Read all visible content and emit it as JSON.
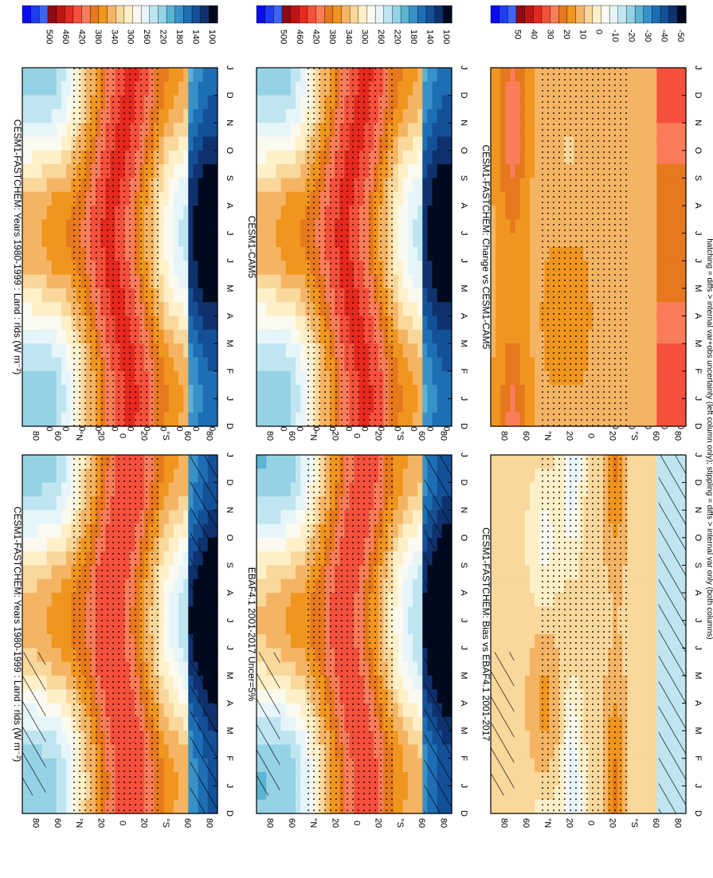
{
  "footer": "hatching = diffs > internal var+obs uncertainty (left column only); stippling = diffs > internal var only (both columns)",
  "months": [
    "D",
    "J",
    "F",
    "M",
    "A",
    "M",
    "J",
    "J",
    "A",
    "S",
    "O",
    "N",
    "D",
    "J"
  ],
  "lat_ticks": [
    "80",
    "60",
    "°N",
    "20",
    "0",
    "20",
    "°S",
    "60",
    "80"
  ],
  "abs_levels": [
    "500",
    "460",
    "420",
    "380",
    "340",
    "300",
    "260",
    "220",
    "180",
    "140",
    "100"
  ],
  "diff_levels": [
    "50",
    "40",
    "30",
    "20",
    "10",
    "0",
    "-10",
    "-20",
    "-30",
    "-40",
    "-50"
  ],
  "abs_colors": [
    "#0a0af5",
    "#1e3cf0",
    "#3c64f5",
    "#8c0a14",
    "#be1414",
    "#e6281e",
    "#f5503c",
    "#fa7d5a",
    "#e6781e",
    "#f0961e",
    "#f5b464",
    "#fad79b",
    "#fff0c8",
    "#fafaf0",
    "#e6f5fa",
    "#bfe6f0",
    "#96d2e6",
    "#5ab4d2",
    "#3791c8",
    "#1e6eb4",
    "#145096",
    "#0f326e",
    "#000a1e"
  ],
  "diff_colors": [
    "#0a0af5",
    "#1e3cf0",
    "#3c64f5",
    "#8c0a14",
    "#be1414",
    "#e6281e",
    "#f5503c",
    "#fa7d5a",
    "#e6781e",
    "#f0961e",
    "#f5b464",
    "#fad79b",
    "#fff0c8",
    "#fafaf0",
    "#e6f5fa",
    "#bfe6f0",
    "#96d2e6",
    "#5ab4d2",
    "#3791c8",
    "#1e6eb4",
    "#145096",
    "#0f326e",
    "#000a1e"
  ],
  "chart_data": [
    {
      "type": "heatmap",
      "title": "CESM1-FASTCHEM: Years 1980-1999 : Land : rlds (W m⁻²)",
      "x": [
        "D",
        "J",
        "F",
        "M",
        "A",
        "M",
        "J",
        "J",
        "A",
        "S",
        "O",
        "N",
        "D",
        "J"
      ],
      "y": [
        "80",
        "60",
        "°N",
        "20",
        "0",
        "20",
        "°S",
        "60",
        "80"
      ],
      "colorbar": [
        "500",
        "460",
        "420",
        "380",
        "340",
        "300",
        "260",
        "220",
        "180",
        "140",
        "100"
      ],
      "hatching": true,
      "stippling": true
    },
    {
      "type": "heatmap",
      "title": "CESM1-FASTCHEM: Years 1980-1999 : Land : rlds (W m⁻²)",
      "x": [
        "D",
        "J",
        "F",
        "M",
        "A",
        "M",
        "J",
        "J",
        "A",
        "S",
        "O",
        "N",
        "D",
        "J"
      ],
      "y": [
        "80",
        "60",
        "°N",
        "20",
        "0",
        "20",
        "°S",
        "60",
        "80"
      ],
      "colorbar": [
        "500",
        "460",
        "420",
        "380",
        "340",
        "300",
        "260",
        "220",
        "180",
        "140",
        "100"
      ],
      "hatching": false,
      "stippling": true
    },
    {
      "type": "heatmap",
      "title": "EBAF4.1 2001-2017 Uncer=5%",
      "x": [
        "D",
        "J",
        "F",
        "M",
        "A",
        "M",
        "J",
        "J",
        "A",
        "S",
        "O",
        "N",
        "D",
        "J"
      ],
      "y": [
        "80",
        "60",
        "°N",
        "20",
        "0",
        "20",
        "°S",
        "60",
        "80"
      ],
      "colorbar": [
        "500",
        "460",
        "420",
        "380",
        "340",
        "300",
        "260",
        "220",
        "180",
        "140",
        "100"
      ],
      "hatching": true,
      "stippling": true
    },
    {
      "type": "heatmap",
      "title": "CESM1-CAM5",
      "x": [
        "D",
        "J",
        "F",
        "M",
        "A",
        "M",
        "J",
        "J",
        "A",
        "S",
        "O",
        "N",
        "D",
        "J"
      ],
      "y": [
        "80",
        "60",
        "°N",
        "20",
        "0",
        "20",
        "°S",
        "60",
        "80"
      ],
      "colorbar": [
        "500",
        "460",
        "420",
        "380",
        "340",
        "300",
        "260",
        "220",
        "180",
        "140",
        "100"
      ],
      "hatching": false,
      "stippling": true
    },
    {
      "type": "heatmap",
      "title": "CESM1-FASTCHEM: Bias vs EBAF4.1 2001-2017",
      "x": [
        "D",
        "J",
        "F",
        "M",
        "A",
        "M",
        "J",
        "J",
        "A",
        "S",
        "O",
        "N",
        "D",
        "J"
      ],
      "y": [
        "80",
        "60",
        "°N",
        "20",
        "0",
        "20",
        "°S",
        "60",
        "80"
      ],
      "colorbar": [
        "50",
        "40",
        "30",
        "20",
        "10",
        "0",
        "-10",
        "-20",
        "-30",
        "-40",
        "-50"
      ],
      "hatching": true,
      "stippling": true
    },
    {
      "type": "heatmap",
      "title": "CESM1-FASTCHEM: Change vs CESM1-CAM5",
      "x": [
        "D",
        "J",
        "F",
        "M",
        "A",
        "M",
        "J",
        "J",
        "A",
        "S",
        "O",
        "N",
        "D",
        "J"
      ],
      "y": [
        "80",
        "60",
        "°N",
        "20",
        "0",
        "20",
        "°S",
        "60",
        "80"
      ],
      "colorbar": [
        "50",
        "40",
        "30",
        "20",
        "10",
        "0",
        "-10",
        "-20",
        "-30",
        "-40",
        "-50"
      ],
      "hatching": false,
      "stippling": true
    }
  ]
}
